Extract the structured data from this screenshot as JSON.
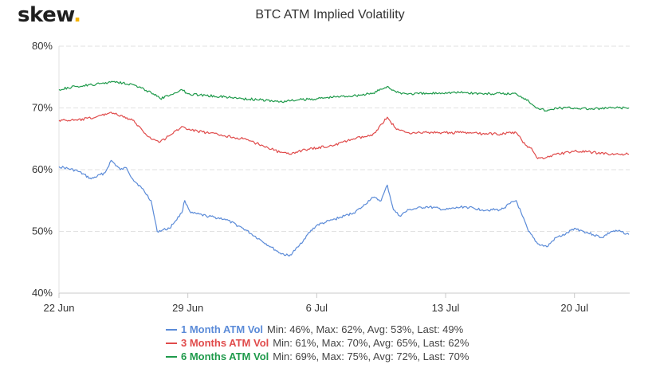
{
  "brand": {
    "name": "skew",
    "dot": "."
  },
  "chart_data": {
    "type": "line",
    "title": "BTC ATM Implied Volatility",
    "xlabel": "",
    "ylabel": "",
    "xlim": [
      "2020-06-22",
      "2020-07-23"
    ],
    "ylim": [
      40,
      80
    ],
    "y_ticks": [
      "40%",
      "50%",
      "60%",
      "70%",
      "80%"
    ],
    "x_ticks": [
      {
        "date": "2020-06-22",
        "label": "22 Jun"
      },
      {
        "date": "2020-06-29",
        "label": "29 Jun"
      },
      {
        "date": "2020-07-06",
        "label": "6 Jul"
      },
      {
        "date": "2020-07-13",
        "label": "13 Jul"
      },
      {
        "date": "2020-07-20",
        "label": "20 Jul"
      }
    ],
    "grid": "horizontal",
    "legend_position": "bottom",
    "series": [
      {
        "name": "1 Month ATM Vol",
        "stats": "Min: 46%, Max: 62%, Avg: 53%, Last: 49%",
        "color": "#5b8bd8",
        "points": [
          [
            "2020-06-22 00:00",
            60.5
          ],
          [
            "2020-06-23 00:00",
            59.8
          ],
          [
            "2020-06-23 18:00",
            58.5
          ],
          [
            "2020-06-24 12:00",
            59.5
          ],
          [
            "2020-06-24 20:00",
            61.5
          ],
          [
            "2020-06-25 08:00",
            60.0
          ],
          [
            "2020-06-25 16:00",
            60.3
          ],
          [
            "2020-06-26 00:00",
            58.5
          ],
          [
            "2020-06-26 12:00",
            57.0
          ],
          [
            "2020-06-27 00:00",
            55.0
          ],
          [
            "2020-06-27 08:00",
            50.0
          ],
          [
            "2020-06-28 00:00",
            50.5
          ],
          [
            "2020-06-28 16:00",
            53.0
          ],
          [
            "2020-06-28 20:00",
            55.0
          ],
          [
            "2020-06-29 04:00",
            53.0
          ],
          [
            "2020-06-30 00:00",
            52.5
          ],
          [
            "2020-07-01 00:00",
            52.0
          ],
          [
            "2020-07-02 00:00",
            50.5
          ],
          [
            "2020-07-03 00:00",
            48.5
          ],
          [
            "2020-07-03 12:00",
            47.5
          ],
          [
            "2020-07-04 00:00",
            46.5
          ],
          [
            "2020-07-04 12:00",
            46.0
          ],
          [
            "2020-07-05 00:00",
            47.5
          ],
          [
            "2020-07-05 12:00",
            49.5
          ],
          [
            "2020-07-06 00:00",
            51.0
          ],
          [
            "2020-07-06 12:00",
            51.5
          ],
          [
            "2020-07-07 00:00",
            52.0
          ],
          [
            "2020-07-07 12:00",
            52.5
          ],
          [
            "2020-07-08 00:00",
            53.0
          ],
          [
            "2020-07-08 12:00",
            54.0
          ],
          [
            "2020-07-09 00:00",
            55.5
          ],
          [
            "2020-07-09 12:00",
            55.0
          ],
          [
            "2020-07-09 20:00",
            57.5
          ],
          [
            "2020-07-10 04:00",
            53.5
          ],
          [
            "2020-07-10 12:00",
            52.5
          ],
          [
            "2020-07-11 00:00",
            53.5
          ],
          [
            "2020-07-12 00:00",
            54.0
          ],
          [
            "2020-07-13 00:00",
            53.5
          ],
          [
            "2020-07-14 00:00",
            54.0
          ],
          [
            "2020-07-15 00:00",
            53.5
          ],
          [
            "2020-07-16 00:00",
            53.5
          ],
          [
            "2020-07-16 12:00",
            54.5
          ],
          [
            "2020-07-16 20:00",
            55.0
          ],
          [
            "2020-07-17 04:00",
            52.5
          ],
          [
            "2020-07-17 12:00",
            50.0
          ],
          [
            "2020-07-18 00:00",
            48.0
          ],
          [
            "2020-07-18 12:00",
            47.5
          ],
          [
            "2020-07-19 00:00",
            49.0
          ],
          [
            "2020-07-19 12:00",
            49.5
          ],
          [
            "2020-07-20 00:00",
            50.5
          ],
          [
            "2020-07-20 12:00",
            50.0
          ],
          [
            "2020-07-21 00:00",
            49.5
          ],
          [
            "2020-07-21 12:00",
            49.0
          ],
          [
            "2020-07-22 00:00",
            50.0
          ],
          [
            "2020-07-22 12:00",
            50.0
          ],
          [
            "2020-07-22 23:00",
            49.5
          ]
        ]
      },
      {
        "name": "3 Months ATM Vol",
        "stats": "Min: 61%, Max: 70%, Avg: 65%, Last: 62%",
        "color": "#e04b4b",
        "points": [
          [
            "2020-06-22 00:00",
            68.0
          ],
          [
            "2020-06-23 00:00",
            68.0
          ],
          [
            "2020-06-24 00:00",
            68.5
          ],
          [
            "2020-06-24 20:00",
            69.3
          ],
          [
            "2020-06-25 12:00",
            68.5
          ],
          [
            "2020-06-26 00:00",
            68.0
          ],
          [
            "2020-06-26 12:00",
            66.5
          ],
          [
            "2020-06-27 00:00",
            65.0
          ],
          [
            "2020-06-27 12:00",
            64.5
          ],
          [
            "2020-06-28 00:00",
            65.5
          ],
          [
            "2020-06-28 16:00",
            67.0
          ],
          [
            "2020-06-29 00:00",
            66.5
          ],
          [
            "2020-06-30 00:00",
            66.0
          ],
          [
            "2020-07-01 00:00",
            65.5
          ],
          [
            "2020-07-02 00:00",
            65.0
          ],
          [
            "2020-07-03 00:00",
            64.0
          ],
          [
            "2020-07-04 00:00",
            62.8
          ],
          [
            "2020-07-04 12:00",
            62.5
          ],
          [
            "2020-07-05 00:00",
            63.0
          ],
          [
            "2020-07-06 00:00",
            63.5
          ],
          [
            "2020-07-07 00:00",
            64.0
          ],
          [
            "2020-07-08 00:00",
            65.0
          ],
          [
            "2020-07-09 00:00",
            65.5
          ],
          [
            "2020-07-09 20:00",
            68.5
          ],
          [
            "2020-07-10 08:00",
            66.5
          ],
          [
            "2020-07-11 00:00",
            66.0
          ],
          [
            "2020-07-12 00:00",
            66.0
          ],
          [
            "2020-07-13 00:00",
            66.0
          ],
          [
            "2020-07-14 00:00",
            66.0
          ],
          [
            "2020-07-15 00:00",
            65.8
          ],
          [
            "2020-07-16 00:00",
            65.8
          ],
          [
            "2020-07-16 20:00",
            66.0
          ],
          [
            "2020-07-17 08:00",
            64.0
          ],
          [
            "2020-07-17 16:00",
            63.5
          ],
          [
            "2020-07-18 00:00",
            61.8
          ],
          [
            "2020-07-18 12:00",
            62.0
          ],
          [
            "2020-07-19 00:00",
            62.5
          ],
          [
            "2020-07-20 00:00",
            63.0
          ],
          [
            "2020-07-21 00:00",
            62.8
          ],
          [
            "2020-07-22 00:00",
            62.5
          ],
          [
            "2020-07-22 23:00",
            62.5
          ]
        ]
      },
      {
        "name": "6 Months ATM Vol",
        "stats": "Min: 69%, Max: 75%, Avg: 72%, Last: 70%",
        "color": "#1f9a4b",
        "points": [
          [
            "2020-06-22 00:00",
            73.0
          ],
          [
            "2020-06-23 00:00",
            73.5
          ],
          [
            "2020-06-24 00:00",
            73.8
          ],
          [
            "2020-06-25 00:00",
            74.3
          ],
          [
            "2020-06-26 00:00",
            73.8
          ],
          [
            "2020-06-27 00:00",
            72.5
          ],
          [
            "2020-06-27 12:00",
            71.5
          ],
          [
            "2020-06-28 00:00",
            72.0
          ],
          [
            "2020-06-28 16:00",
            73.0
          ],
          [
            "2020-06-29 00:00",
            72.3
          ],
          [
            "2020-06-30 00:00",
            72.0
          ],
          [
            "2020-07-01 00:00",
            71.8
          ],
          [
            "2020-07-02 00:00",
            71.5
          ],
          [
            "2020-07-03 00:00",
            71.3
          ],
          [
            "2020-07-04 00:00",
            71.0
          ],
          [
            "2020-07-05 00:00",
            71.3
          ],
          [
            "2020-07-06 00:00",
            71.5
          ],
          [
            "2020-07-07 00:00",
            71.8
          ],
          [
            "2020-07-08 00:00",
            72.0
          ],
          [
            "2020-07-09 00:00",
            72.3
          ],
          [
            "2020-07-09 20:00",
            73.5
          ],
          [
            "2020-07-10 08:00",
            72.5
          ],
          [
            "2020-07-11 00:00",
            72.3
          ],
          [
            "2020-07-12 00:00",
            72.3
          ],
          [
            "2020-07-13 00:00",
            72.5
          ],
          [
            "2020-07-14 00:00",
            72.5
          ],
          [
            "2020-07-15 00:00",
            72.3
          ],
          [
            "2020-07-16 00:00",
            72.3
          ],
          [
            "2020-07-16 20:00",
            72.3
          ],
          [
            "2020-07-17 08:00",
            71.5
          ],
          [
            "2020-07-18 00:00",
            70.0
          ],
          [
            "2020-07-18 12:00",
            69.5
          ],
          [
            "2020-07-19 00:00",
            70.0
          ],
          [
            "2020-07-20 00:00",
            70.0
          ],
          [
            "2020-07-21 00:00",
            69.8
          ],
          [
            "2020-07-22 00:00",
            70.0
          ],
          [
            "2020-07-22 23:00",
            70.0
          ]
        ]
      }
    ]
  }
}
